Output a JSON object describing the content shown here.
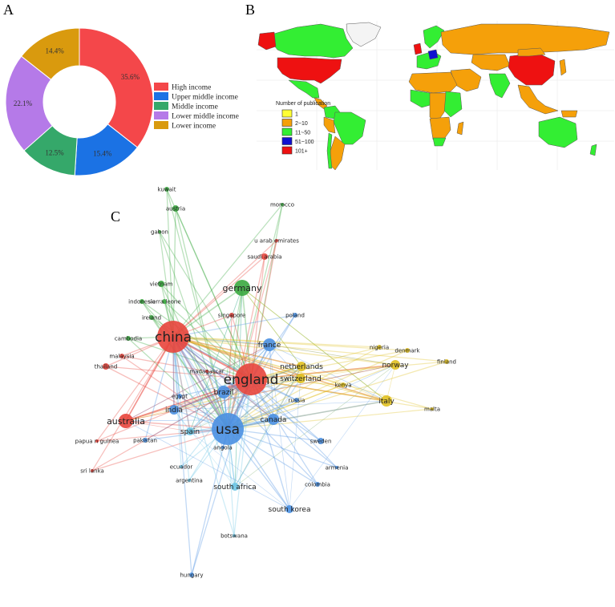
{
  "panels": {
    "a": "A",
    "b": "B",
    "c": "C"
  },
  "chart_data": [
    {
      "type": "pie",
      "variant": "donut",
      "categories": [
        "High income",
        "Upper middle income",
        "Middle income",
        "Lower middle income",
        "Lower income"
      ],
      "values": [
        35.6,
        15.4,
        12.5,
        22.1,
        14.4
      ],
      "labels": [
        "35.6%",
        "15.4%",
        "12.5%",
        "22.1%",
        "14.4%"
      ],
      "colors": [
        "#f4474a",
        "#1b72e4",
        "#35a86a",
        "#b57ae8",
        "#d99a0e"
      ],
      "legend": "right"
    },
    {
      "type": "map",
      "legend_title": "Number of publication",
      "legend": [
        {
          "label": "1",
          "color": "#ffff33"
        },
        {
          "label": "2~10",
          "color": "#f5a00a"
        },
        {
          "label": "11~50",
          "color": "#33ee33"
        },
        {
          "label": "51~100",
          "color": "#1010d0"
        },
        {
          "label": "101+",
          "color": "#ee1111"
        }
      ]
    },
    {
      "type": "network",
      "clusters": {
        "red": "#e8453c",
        "green": "#3aa83f",
        "blue": "#4a90e2",
        "yellow": "#e0c020",
        "cyan": "#6ec6e6"
      },
      "nodes": [
        {
          "label": "kuwait",
          "cluster": "green",
          "size": 3
        },
        {
          "label": "austria",
          "cluster": "green",
          "size": 4
        },
        {
          "label": "gabon",
          "cluster": "green",
          "size": 2
        },
        {
          "label": "morocco",
          "cluster": "green",
          "size": 2
        },
        {
          "label": "u arab emirates",
          "cluster": "red",
          "size": 2
        },
        {
          "label": "saudi arabia",
          "cluster": "red",
          "size": 4
        },
        {
          "label": "vietnam",
          "cluster": "green",
          "size": 4
        },
        {
          "label": "germany",
          "cluster": "green",
          "size": 10
        },
        {
          "label": "indonesia",
          "cluster": "green",
          "size": 3
        },
        {
          "label": "sierra leone",
          "cluster": "green",
          "size": 3
        },
        {
          "label": "singapore",
          "cluster": "red",
          "size": 3
        },
        {
          "label": "poland",
          "cluster": "blue",
          "size": 3
        },
        {
          "label": "ireland",
          "cluster": "green",
          "size": 3
        },
        {
          "label": "china",
          "cluster": "red",
          "size": 20
        },
        {
          "label": "cambodia",
          "cluster": "green",
          "size": 3
        },
        {
          "label": "france",
          "cluster": "blue",
          "size": 8
        },
        {
          "label": "nigeria",
          "cluster": "yellow",
          "size": 3
        },
        {
          "label": "denmark",
          "cluster": "yellow",
          "size": 3
        },
        {
          "label": "malaysia",
          "cluster": "red",
          "size": 3
        },
        {
          "label": "netherlands",
          "cluster": "yellow",
          "size": 6
        },
        {
          "label": "norway",
          "cluster": "yellow",
          "size": 6
        },
        {
          "label": "finland",
          "cluster": "yellow",
          "size": 3
        },
        {
          "label": "thailand",
          "cluster": "red",
          "size": 4
        },
        {
          "label": "madagascar",
          "cluster": "red",
          "size": 2
        },
        {
          "label": "england",
          "cluster": "red",
          "size": 20
        },
        {
          "label": "switzerland",
          "cluster": "yellow",
          "size": 6
        },
        {
          "label": "kenya",
          "cluster": "yellow",
          "size": 3
        },
        {
          "label": "brazil",
          "cluster": "blue",
          "size": 8
        },
        {
          "label": "egypt",
          "cluster": "blue",
          "size": 3
        },
        {
          "label": "russia",
          "cluster": "blue",
          "size": 3
        },
        {
          "label": "italy",
          "cluster": "yellow",
          "size": 7
        },
        {
          "label": "india",
          "cluster": "blue",
          "size": 6
        },
        {
          "label": "malta",
          "cluster": "yellow",
          "size": 2
        },
        {
          "label": "australia",
          "cluster": "red",
          "size": 9
        },
        {
          "label": "canada",
          "cluster": "blue",
          "size": 7
        },
        {
          "label": "usa",
          "cluster": "blue",
          "size": 20
        },
        {
          "label": "spain",
          "cluster": "cyan",
          "size": 5
        },
        {
          "label": "pakistan",
          "cluster": "blue",
          "size": 3
        },
        {
          "label": "sweden",
          "cluster": "blue",
          "size": 4
        },
        {
          "label": "papua n guinea",
          "cluster": "red",
          "size": 2
        },
        {
          "label": "angola",
          "cluster": "blue",
          "size": 2
        },
        {
          "label": "ecuador",
          "cluster": "cyan",
          "size": 2
        },
        {
          "label": "armenia",
          "cluster": "blue",
          "size": 2
        },
        {
          "label": "sri lanka",
          "cluster": "red",
          "size": 2
        },
        {
          "label": "argentina",
          "cluster": "cyan",
          "size": 2
        },
        {
          "label": "colombia",
          "cluster": "blue",
          "size": 3
        },
        {
          "label": "south africa",
          "cluster": "cyan",
          "size": 5
        },
        {
          "label": "south korea",
          "cluster": "blue",
          "size": 5
        },
        {
          "label": "botswana",
          "cluster": "cyan",
          "size": 2
        },
        {
          "label": "hungary",
          "cluster": "blue",
          "size": 3
        }
      ]
    }
  ]
}
